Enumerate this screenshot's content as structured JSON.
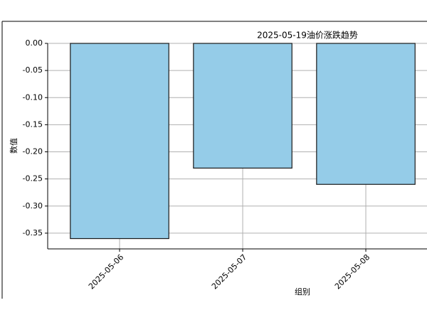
{
  "chart_data": {
    "type": "bar",
    "title": "2025-05-19油价涨跌趋势",
    "x_label": "组别",
    "y_label": "数值",
    "categories": [
      "2025-05-06",
      "2025-05-07",
      "2025-05-08"
    ],
    "values": [
      -0.36,
      -0.23,
      -0.26
    ],
    "color": "#95cce8",
    "ylim": [
      -0.379,
      0
    ],
    "yticks": [
      {
        "value": 0,
        "label": "0.00"
      },
      {
        "value": -0.05,
        "label": "-0.05"
      },
      {
        "value": -0.1,
        "label": "-0.10"
      },
      {
        "value": -0.15,
        "label": "-0.15"
      },
      {
        "value": -0.2,
        "label": "-0.20"
      },
      {
        "value": -0.25,
        "label": "-0.25"
      },
      {
        "value": -0.3,
        "label": "-0.30"
      },
      {
        "value": -0.35,
        "label": "-0.35"
      }
    ],
    "grid": true
  }
}
